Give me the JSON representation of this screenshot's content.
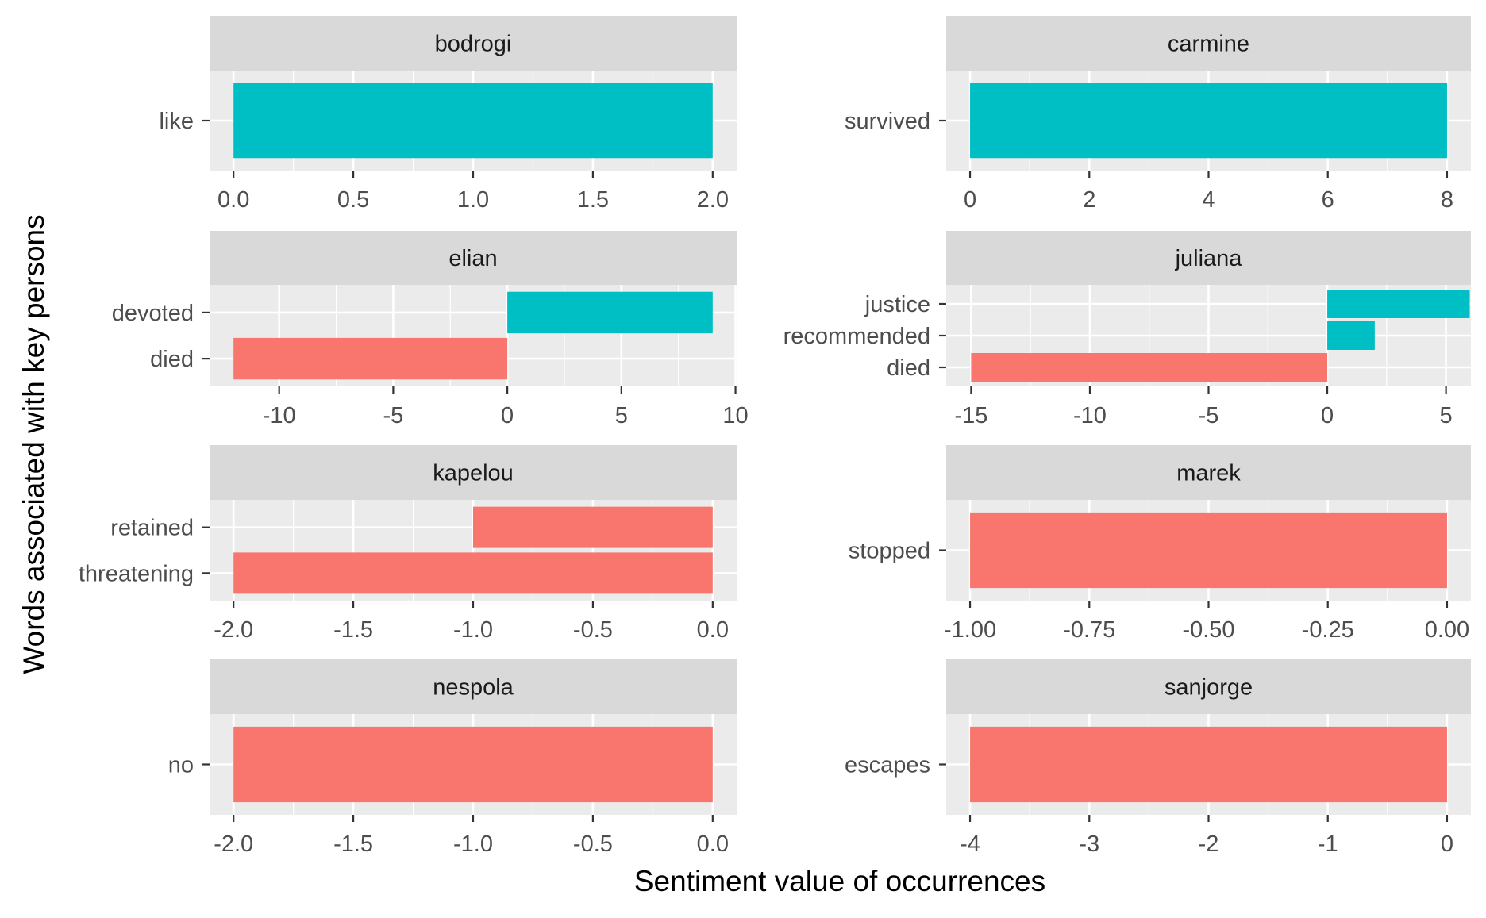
{
  "chart_data": {
    "type": "bar",
    "orientation": "horizontal",
    "layout": "facet-grid",
    "xlabel": "Sentiment value of occurrences",
    "ylabel": "Words associated with key persons",
    "colors": {
      "positive": "#00BFC4",
      "negative": "#F8766D"
    },
    "facets": [
      {
        "name": "bodrogi",
        "xlim": [
          -0.1,
          2.1
        ],
        "xticks": [
          "0.0",
          "0.5",
          "1.0",
          "1.5",
          "2.0"
        ],
        "xtick_values": [
          0,
          0.5,
          1,
          1.5,
          2
        ],
        "bars": [
          {
            "word": "like",
            "value": 2,
            "sign": "positive"
          }
        ]
      },
      {
        "name": "carmine",
        "xlim": [
          -0.4,
          8.4
        ],
        "xticks": [
          "0",
          "2",
          "4",
          "6",
          "8"
        ],
        "xtick_values": [
          0,
          2,
          4,
          6,
          8
        ],
        "bars": [
          {
            "word": "survived",
            "value": 8,
            "sign": "positive"
          }
        ]
      },
      {
        "name": "elian",
        "xlim": [
          -13.05,
          10.05
        ],
        "xticks": [
          "-10",
          "-5",
          "0",
          "5",
          "10"
        ],
        "xtick_values": [
          -10,
          -5,
          0,
          5,
          10
        ],
        "bars": [
          {
            "word": "devoted",
            "value": 9,
            "sign": "positive"
          },
          {
            "word": "died",
            "value": -12,
            "sign": "negative"
          }
        ]
      },
      {
        "name": "juliana",
        "xlim": [
          -16.05,
          6.05
        ],
        "xticks": [
          "-15",
          "-10",
          "-5",
          "0",
          "5"
        ],
        "xtick_values": [
          -15,
          -10,
          -5,
          0,
          5
        ],
        "bars": [
          {
            "word": "justice",
            "value": 6,
            "sign": "positive"
          },
          {
            "word": "recommended",
            "value": 2,
            "sign": "positive"
          },
          {
            "word": "died",
            "value": -15,
            "sign": "negative"
          }
        ]
      },
      {
        "name": "kapelou",
        "xlim": [
          -2.1,
          0.1
        ],
        "xticks": [
          "-2.0",
          "-1.5",
          "-1.0",
          "-0.5",
          "0.0"
        ],
        "xtick_values": [
          -2,
          -1.5,
          -1,
          -0.5,
          0
        ],
        "bars": [
          {
            "word": "retained",
            "value": -1,
            "sign": "negative"
          },
          {
            "word": "threatening",
            "value": -2,
            "sign": "negative"
          }
        ]
      },
      {
        "name": "marek",
        "xlim": [
          -1.05,
          0.05
        ],
        "xticks": [
          "-1.00",
          "-0.75",
          "-0.50",
          "-0.25",
          "0.00"
        ],
        "xtick_values": [
          -1,
          -0.75,
          -0.5,
          -0.25,
          0
        ],
        "bars": [
          {
            "word": "stopped",
            "value": -1,
            "sign": "negative"
          }
        ]
      },
      {
        "name": "nespola",
        "xlim": [
          -2.1,
          0.1
        ],
        "xticks": [
          "-2.0",
          "-1.5",
          "-1.0",
          "-0.5",
          "0.0"
        ],
        "xtick_values": [
          -2,
          -1.5,
          -1,
          -0.5,
          0
        ],
        "bars": [
          {
            "word": "no",
            "value": -2,
            "sign": "negative"
          }
        ]
      },
      {
        "name": "sanjorge",
        "xlim": [
          -4.2,
          0.2
        ],
        "xticks": [
          "-4",
          "-3",
          "-2",
          "-1",
          "0"
        ],
        "xtick_values": [
          -4,
          -3,
          -2,
          -1,
          0
        ],
        "bars": [
          {
            "word": "escapes",
            "value": -4,
            "sign": "negative"
          }
        ]
      }
    ]
  }
}
